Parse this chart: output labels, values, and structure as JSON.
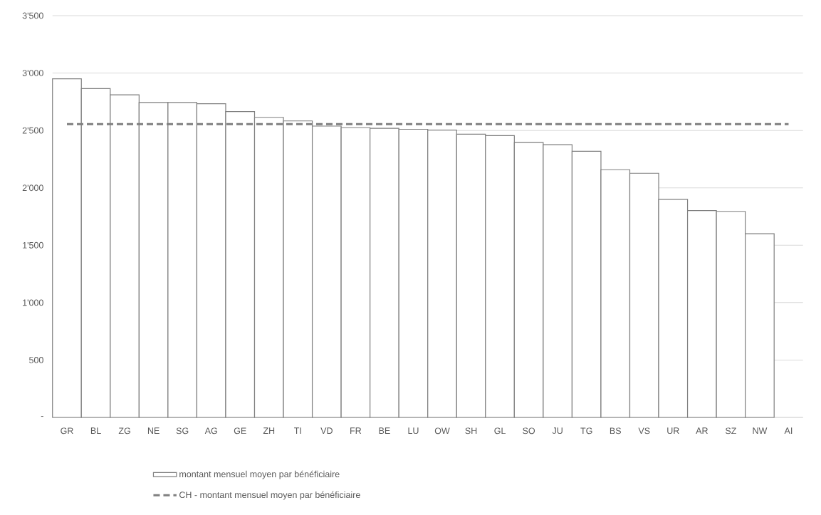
{
  "chart_data": {
    "type": "bar",
    "categories": [
      "GR",
      "BL",
      "ZG",
      "NE",
      "SG",
      "AG",
      "GE",
      "ZH",
      "TI",
      "VD",
      "FR",
      "BE",
      "LU",
      "OW",
      "SH",
      "GL",
      "SO",
      "JU",
      "TG",
      "BS",
      "VS",
      "UR",
      "AR",
      "SZ",
      "NW",
      "AI"
    ],
    "series": [
      {
        "name": "montant mensuel moyen par bénéficiaire",
        "color": "#ffffff",
        "values": [
          2950,
          2864,
          2810,
          2743,
          2743,
          2733,
          2664,
          2614,
          2583,
          2538,
          2524,
          2519,
          2510,
          2503,
          2467,
          2455,
          2395,
          2376,
          2318,
          2158,
          2127,
          1900,
          1802,
          1795,
          1600,
          null
        ]
      }
    ],
    "ref_lines": [
      {
        "axis": "y",
        "value": 2555,
        "label": "CH - montant mensuel moyen par bénéficiaire",
        "color": "#7f7f7f",
        "line_style": "dashed"
      }
    ],
    "ylim": [
      0,
      3500
    ],
    "yticks": [
      {
        "value": 0,
        "label": "-"
      },
      {
        "value": 500,
        "label": "500"
      },
      {
        "value": 1000,
        "label": "1'000"
      },
      {
        "value": 1500,
        "label": "1'500"
      },
      {
        "value": 2000,
        "label": "2'000"
      },
      {
        "value": 2500,
        "label": "2'500"
      },
      {
        "value": 3000,
        "label": "3'000"
      },
      {
        "value": 3500,
        "label": "3'500"
      }
    ],
    "grid": "y",
    "legend": "bottom"
  }
}
